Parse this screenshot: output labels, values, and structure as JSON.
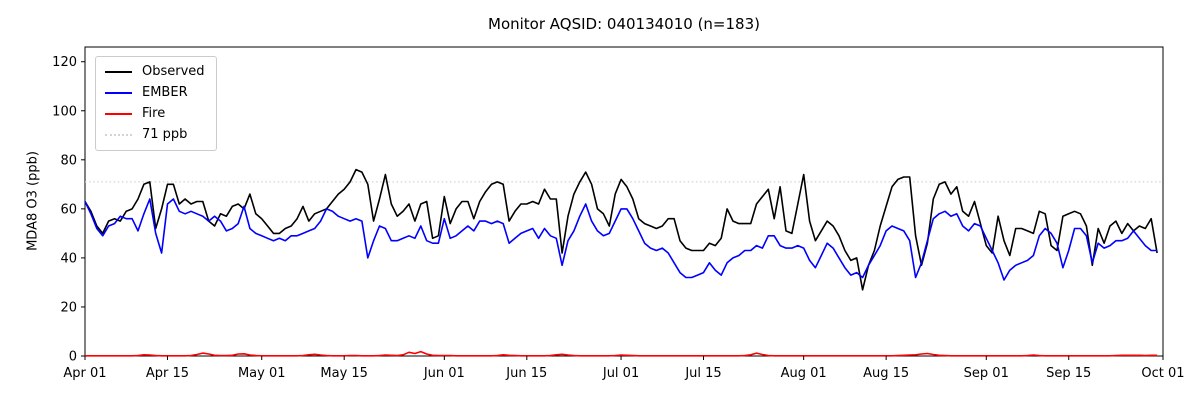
{
  "figure": {
    "title": "Monitor AQSID: 040134010 (n=183)",
    "background": "#ffffff"
  },
  "axes": {
    "ylabel": "MDA8 O3 (ppb)",
    "ylim": [
      0,
      126
    ],
    "yticks": [
      0,
      20,
      40,
      60,
      80,
      100,
      120
    ],
    "x_range_days": [
      0,
      183
    ],
    "xticks": [
      {
        "day": 0,
        "label": "Apr 01"
      },
      {
        "day": 14,
        "label": "Apr 15"
      },
      {
        "day": 30,
        "label": "May 01"
      },
      {
        "day": 44,
        "label": "May 15"
      },
      {
        "day": 61,
        "label": "Jun 01"
      },
      {
        "day": 75,
        "label": "Jun 15"
      },
      {
        "day": 91,
        "label": "Jul 01"
      },
      {
        "day": 105,
        "label": "Jul 15"
      },
      {
        "day": 122,
        "label": "Aug 01"
      },
      {
        "day": 136,
        "label": "Aug 15"
      },
      {
        "day": 153,
        "label": "Sep 01"
      },
      {
        "day": 167,
        "label": "Sep 15"
      },
      {
        "day": 183,
        "label": "Oct 01"
      }
    ]
  },
  "legend": {
    "entries": [
      {
        "label": "Observed",
        "color": "#000000",
        "style": "solid"
      },
      {
        "label": "EMBER",
        "color": "#0000ff",
        "style": "solid"
      },
      {
        "label": "Fire",
        "color": "#ff0000",
        "style": "solid"
      },
      {
        "label": "71 ppb",
        "color": "#d3d3d3",
        "style": "dotted"
      }
    ]
  },
  "threshold": {
    "value": 71,
    "label": "71 ppb",
    "color": "#d3d3d3"
  },
  "chart_data": {
    "type": "line",
    "title": "Monitor AQSID: 040134010 (n=183)",
    "xlabel": "",
    "ylabel": "MDA8 O3 (ppb)",
    "x_unit": "daily values, days since Apr 01",
    "n": 183,
    "ylim": [
      0,
      126
    ],
    "grid": false,
    "legend_position": "upper left",
    "threshold_ppb": 71,
    "x_tick_labels": [
      "Apr 01",
      "Apr 15",
      "May 01",
      "May 15",
      "Jun 01",
      "Jun 15",
      "Jul 01",
      "Jul 15",
      "Aug 01",
      "Aug 15",
      "Sep 01",
      "Sep 15",
      "Oct 01"
    ],
    "series": [
      {
        "key": "observed",
        "name": "Observed",
        "color": "#000000",
        "values": [
          63,
          59,
          53,
          50,
          55,
          56,
          55,
          59,
          60,
          64,
          70,
          71,
          52,
          60,
          70,
          70,
          62,
          64,
          62,
          63,
          63,
          55,
          53,
          58,
          57,
          61,
          62,
          60,
          66,
          58,
          56,
          53,
          50,
          50,
          52,
          53,
          56,
          61,
          55,
          58,
          59,
          60,
          63,
          66,
          68,
          71,
          76,
          75,
          70,
          55,
          64,
          74,
          62,
          57,
          59,
          62,
          55,
          62,
          63,
          48,
          49,
          65,
          54,
          60,
          63,
          63,
          56,
          63,
          67,
          70,
          71,
          70,
          55,
          59,
          62,
          62,
          63,
          62,
          68,
          64,
          64,
          42,
          57,
          66,
          71,
          75,
          70,
          60,
          58,
          53,
          66,
          72,
          69,
          64,
          56,
          54,
          53,
          52,
          53,
          56,
          56,
          47,
          44,
          43,
          43,
          43,
          46,
          45,
          48,
          60,
          55,
          54,
          54,
          54,
          62,
          65,
          68,
          56,
          69,
          51,
          50,
          62,
          74,
          55,
          47,
          51,
          55,
          53,
          49,
          43,
          39,
          40,
          27,
          37,
          43,
          53,
          61,
          69,
          72,
          73,
          73,
          49,
          37,
          46,
          64,
          70,
          71,
          66,
          69,
          59,
          57,
          63,
          54,
          45,
          42,
          57,
          47,
          41,
          52,
          52,
          51,
          50,
          59,
          58,
          45,
          43,
          57,
          58,
          59,
          58,
          53,
          37,
          52,
          46,
          53,
          55,
          50,
          54,
          51,
          53,
          52,
          56,
          42
        ]
      },
      {
        "key": "ember",
        "name": "EMBER",
        "color": "#0000ff",
        "values": [
          63,
          58,
          52,
          49,
          53,
          54,
          57,
          56,
          56,
          51,
          58,
          64,
          50,
          42,
          62,
          64,
          59,
          58,
          59,
          58,
          57,
          55,
          57,
          55,
          51,
          52,
          54,
          61,
          52,
          50,
          49,
          48,
          47,
          48,
          47,
          49,
          49,
          50,
          51,
          52,
          55,
          60,
          59,
          57,
          56,
          55,
          56,
          55,
          40,
          47,
          53,
          52,
          47,
          47,
          48,
          49,
          48,
          53,
          47,
          46,
          46,
          56,
          48,
          49,
          51,
          53,
          51,
          55,
          55,
          54,
          55,
          54,
          46,
          48,
          50,
          51,
          52,
          48,
          52,
          49,
          48,
          37,
          47,
          51,
          57,
          62,
          55,
          51,
          49,
          50,
          55,
          60,
          60,
          56,
          51,
          46,
          44,
          43,
          44,
          42,
          38,
          34,
          32,
          32,
          33,
          34,
          38,
          35,
          33,
          38,
          40,
          41,
          43,
          43,
          45,
          44,
          49,
          49,
          45,
          44,
          44,
          45,
          44,
          39,
          36,
          41,
          46,
          44,
          40,
          36,
          33,
          34,
          32,
          37,
          41,
          45,
          51,
          53,
          52,
          51,
          47,
          32,
          38,
          47,
          56,
          58,
          59,
          57,
          58,
          53,
          51,
          54,
          53,
          48,
          43,
          38,
          31,
          35,
          37,
          38,
          39,
          41,
          49,
          52,
          50,
          46,
          36,
          43,
          52,
          52,
          49,
          38,
          46,
          44,
          45,
          47,
          47,
          48,
          51,
          48,
          45,
          43,
          43
        ]
      },
      {
        "key": "fire",
        "name": "Fire",
        "color": "#ff0000",
        "values": [
          0.1,
          0.1,
          0.1,
          0.1,
          0.1,
          0.1,
          0.1,
          0.1,
          0.1,
          0.2,
          0.5,
          0.4,
          0.2,
          0.1,
          0.1,
          0.1,
          0.1,
          0.1,
          0.2,
          0.6,
          1.2,
          0.8,
          0.3,
          0.2,
          0.2,
          0.3,
          0.8,
          0.9,
          0.4,
          0.2,
          0.1,
          0.1,
          0.1,
          0.1,
          0.1,
          0.1,
          0.1,
          0.2,
          0.5,
          0.7,
          0.4,
          0.2,
          0.1,
          0.1,
          0.1,
          0.2,
          0.2,
          0.1,
          0.1,
          0.1,
          0.2,
          0.4,
          0.3,
          0.2,
          0.5,
          1.5,
          1.0,
          1.8,
          0.8,
          0.3,
          0.2,
          0.2,
          0.2,
          0.1,
          0.1,
          0.1,
          0.1,
          0.1,
          0.1,
          0.1,
          0.2,
          0.5,
          0.3,
          0.2,
          0.1,
          0.1,
          0.1,
          0.1,
          0.1,
          0.2,
          0.5,
          0.7,
          0.4,
          0.2,
          0.1,
          0.1,
          0.1,
          0.1,
          0.1,
          0.1,
          0.2,
          0.4,
          0.3,
          0.2,
          0.1,
          0.1,
          0.1,
          0.1,
          0.1,
          0.1,
          0.1,
          0.1,
          0.1,
          0.1,
          0.1,
          0.1,
          0.1,
          0.1,
          0.1,
          0.1,
          0.1,
          0.1,
          0.2,
          0.5,
          1.2,
          0.6,
          0.2,
          0.1,
          0.1,
          0.1,
          0.1,
          0.1,
          0.1,
          0.1,
          0.1,
          0.1,
          0.1,
          0.1,
          0.1,
          0.1,
          0.1,
          0.1,
          0.1,
          0.1,
          0.1,
          0.1,
          0.1,
          0.1,
          0.2,
          0.3,
          0.4,
          0.5,
          0.8,
          1.0,
          0.6,
          0.3,
          0.2,
          0.1,
          0.1,
          0.1,
          0.1,
          0.1,
          0.1,
          0.1,
          0.1,
          0.1,
          0.1,
          0.1,
          0.1,
          0.1,
          0.2,
          0.4,
          0.2,
          0.1,
          0.1,
          0.1,
          0.1,
          0.1,
          0.1,
          0.1,
          0.1,
          0.1,
          0.1,
          0.1,
          0.1,
          0.2,
          0.3,
          0.3,
          0.3,
          0.3,
          0.2,
          0.3,
          0.3
        ]
      }
    ]
  }
}
